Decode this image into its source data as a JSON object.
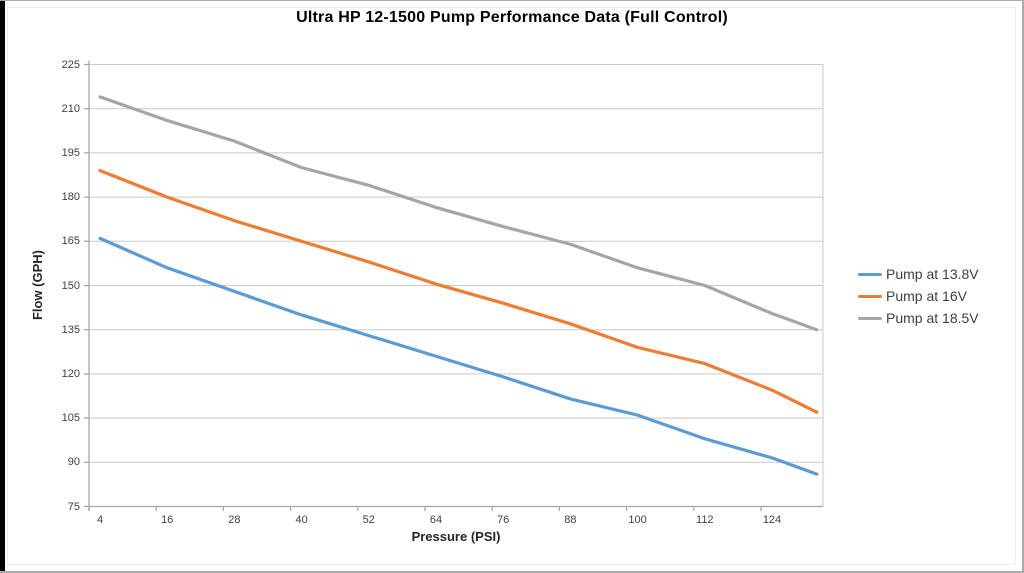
{
  "page": {
    "background": "#ffffff",
    "outer_border_color": "#ababab",
    "left_edge_bar_color": "#000000"
  },
  "chart_data": {
    "type": "line",
    "title": "Ultra HP 12-1500 Pump Performance Data (Full Control)",
    "xlabel": "Pressure (PSI)",
    "ylabel": "Flow (GPH)",
    "x": [
      4,
      16,
      28,
      40,
      52,
      64,
      76,
      88,
      100,
      112,
      124,
      132
    ],
    "x_tick_labels": [
      "4",
      "16",
      "28",
      "40",
      "52",
      "64",
      "76",
      "88",
      "100",
      "112",
      "124"
    ],
    "y_ticks": [
      75,
      90,
      105,
      120,
      135,
      150,
      165,
      180,
      195,
      210,
      225
    ],
    "ylim": [
      75,
      225
    ],
    "xlim": [
      4,
      132
    ],
    "grid": "horizontal",
    "legend_position": "right",
    "series": [
      {
        "name": "Pump at 13.8V",
        "color": "#5B9BD5",
        "values": [
          166,
          156,
          148,
          140,
          133,
          126,
          119,
          111.5,
          106,
          98,
          91.5,
          86
        ]
      },
      {
        "name": "Pump at 16V",
        "color": "#ED7D31",
        "values": [
          189,
          180,
          172,
          165,
          158,
          150.5,
          144,
          137,
          129,
          123.5,
          114.5,
          107
        ]
      },
      {
        "name": "Pump at 18.5V",
        "color": "#A5A5A5",
        "values": [
          214,
          206,
          199,
          190,
          184,
          176.5,
          170,
          164,
          156,
          150,
          140.5,
          135
        ]
      }
    ],
    "styles": {
      "gridline_color": "#c9c9c9",
      "plot_border_color": "#c9c9c9",
      "axis_color": "#a6a6a6",
      "tick_label_color": "#404040",
      "title_color": "#000000",
      "axis_title_color": "#262626",
      "line_width": 3.2
    }
  }
}
